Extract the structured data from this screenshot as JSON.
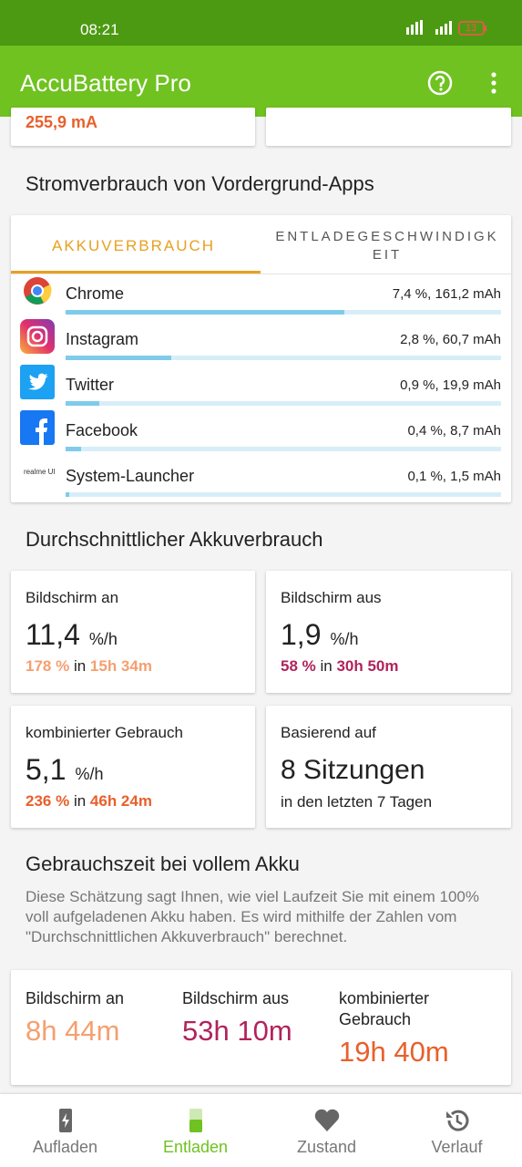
{
  "status_bar": {
    "time": "08:21",
    "battery": "13"
  },
  "app_bar": {
    "title": "AccuBattery Pro"
  },
  "top_cards": {
    "current": "255,9 mA"
  },
  "foreground_apps": {
    "heading": "Stromverbrauch von Vordergrund-Apps",
    "tabs": [
      "AKKUVERBRAUCH",
      "ENTLADEGESCHWINDIGKEIT"
    ],
    "apps": [
      {
        "name": "Chrome",
        "value": 7.4,
        "value_label": "7,4 %, 161,2 mAh"
      },
      {
        "name": "Instagram",
        "value": 2.8,
        "value_label": "2,8 %, 60,7 mAh"
      },
      {
        "name": "Twitter",
        "value": 0.9,
        "value_label": "0,9 %, 19,9 mAh"
      },
      {
        "name": "Facebook",
        "value": 0.4,
        "value_label": "0,4 %, 8,7 mAh"
      },
      {
        "name": "System-Launcher",
        "value": 0.1,
        "value_label": "0,1 %, 1,5 mAh",
        "icon_text": "realme UI"
      }
    ]
  },
  "average": {
    "heading": "Durchschnittlicher Akkuverbrauch",
    "cards": [
      {
        "label": "Bildschirm an",
        "rate": "11,4",
        "unit": "%/h",
        "share": "178 %",
        "connector": "in",
        "duration": "15h 34m"
      },
      {
        "label": "Bildschirm aus",
        "rate": "1,9",
        "unit": "%/h",
        "share": "58 %",
        "connector": "in",
        "duration": "30h 50m"
      },
      {
        "label": "kombinierter Gebrauch",
        "rate": "5,1",
        "unit": "%/h",
        "share": "236 %",
        "connector": "in",
        "duration": "46h 24m"
      }
    ],
    "basis": {
      "label": "Basierend auf",
      "sessions": "8 Sitzungen",
      "period": "in den letzten 7 Tagen"
    }
  },
  "full_charge": {
    "heading": "Gebrauchszeit bei vollem Akku",
    "description": "Diese Schätzung sagt Ihnen, wie viel Laufzeit Sie mit einem 100% voll aufgeladenen Akku haben. Es wird mithilfe der Zahlen vom \"Durchschnittlichen Akkuverbrauch\" berechnet.",
    "items": [
      {
        "label": "Bildschirm an",
        "value": "8h 44m"
      },
      {
        "label": "Bildschirm aus",
        "value": "53h 10m"
      },
      {
        "label": "kombinierter Gebrauch",
        "value": "19h 40m"
      }
    ]
  },
  "bottom_nav": [
    "Aufladen",
    "Entladen",
    "Zustand",
    "Verlauf"
  ]
}
